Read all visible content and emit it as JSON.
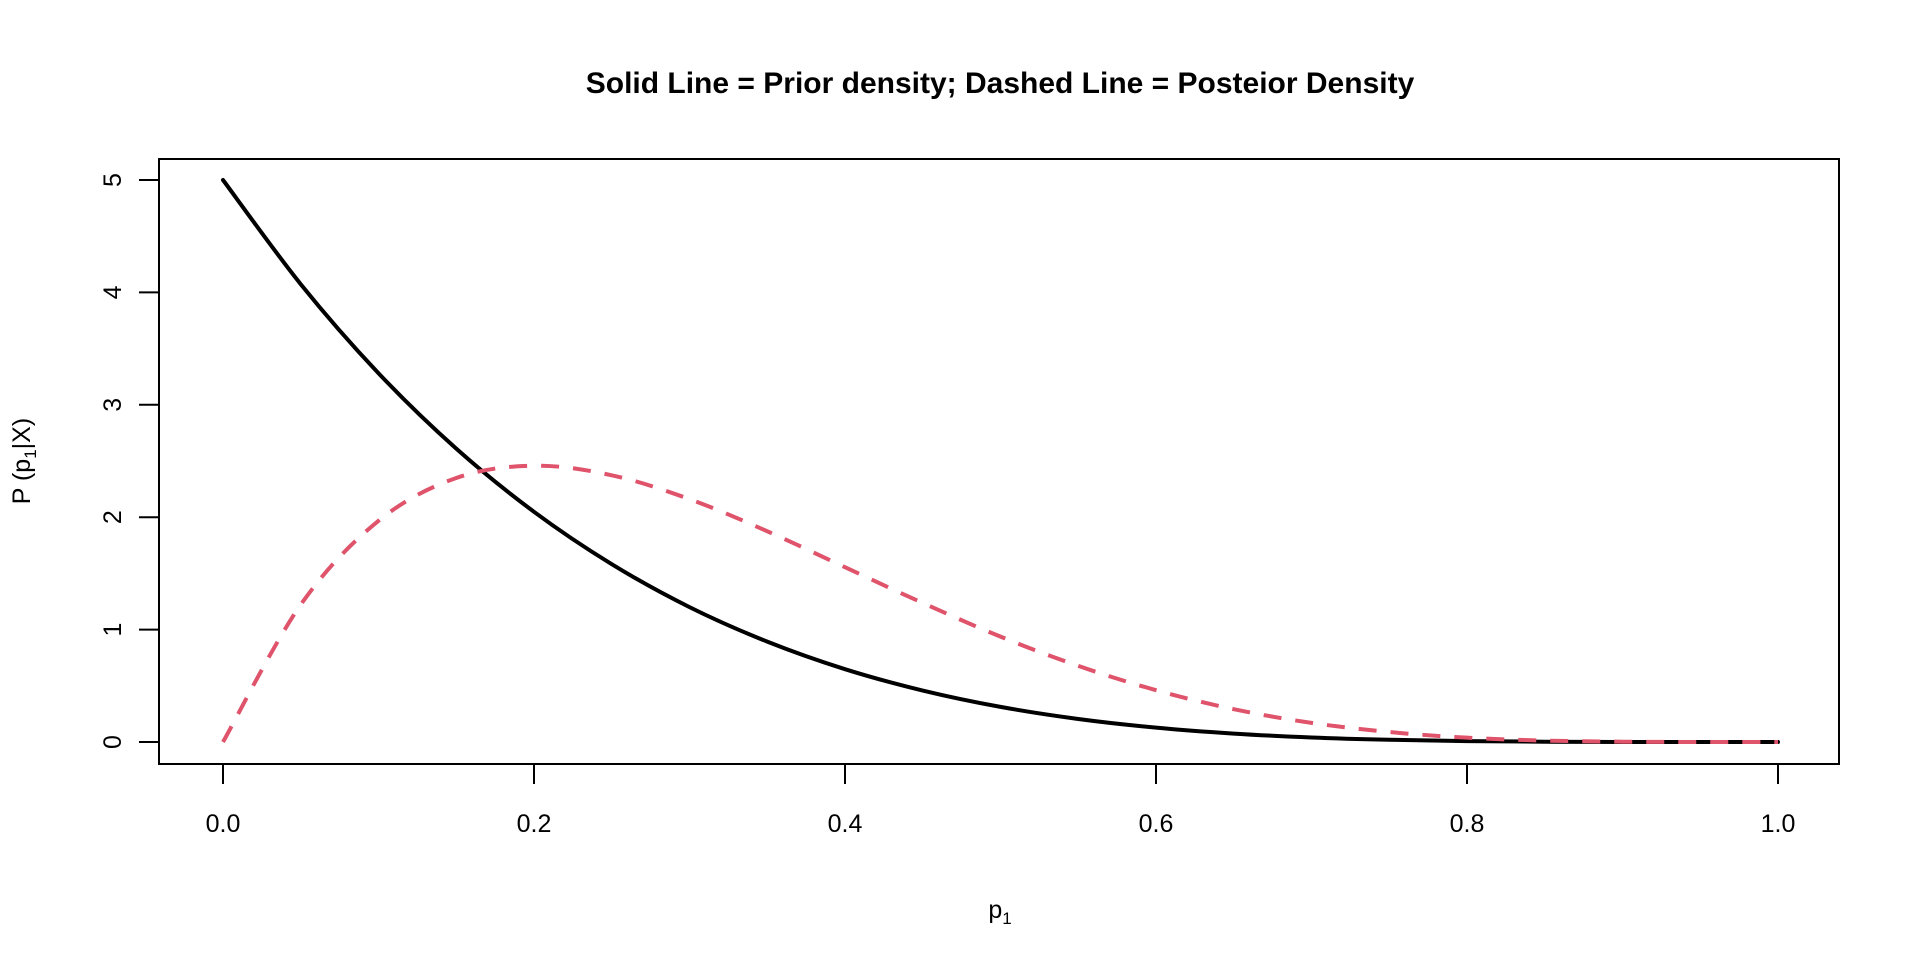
{
  "chart_data": {
    "type": "line",
    "title": "Solid Line = Prior density; Dashed Line = Posteior Density",
    "xlabel_main": "p",
    "xlabel_sub": "1",
    "ylabel_prefix": "P (p",
    "ylabel_sub": "1",
    "ylabel_suffix": "|X)",
    "xlim": [
      0,
      1
    ],
    "ylim": [
      0,
      5
    ],
    "grid": false,
    "legend": "none",
    "x_ticks": [
      "0.0",
      "0.2",
      "0.4",
      "0.6",
      "0.8",
      "1.0"
    ],
    "x_tick_values": [
      0,
      0.2,
      0.4,
      0.6,
      0.8,
      1.0
    ],
    "y_ticks": [
      "0",
      "1",
      "2",
      "3",
      "4",
      "5"
    ],
    "y_tick_values": [
      0,
      1,
      2,
      3,
      4,
      5
    ],
    "x": [
      0.0,
      0.05,
      0.1,
      0.15,
      0.2,
      0.25,
      0.3,
      0.35,
      0.4,
      0.45,
      0.5,
      0.55,
      0.6,
      0.65,
      0.7,
      0.75,
      0.8,
      0.85,
      0.9,
      0.95,
      1.0
    ],
    "series": [
      {
        "style": "solid",
        "color": "#000000",
        "values": [
          5.0,
          4.073,
          3.281,
          2.61,
          2.048,
          1.582,
          1.2,
          0.893,
          0.648,
          0.458,
          0.3125,
          0.205,
          0.128,
          0.075,
          0.0405,
          0.0198,
          0.008,
          0.0025,
          0.0005,
          3e-05,
          0.0
        ]
      },
      {
        "style": "dashed",
        "color": "#DF536B",
        "values": [
          0.0,
          1.222,
          1.968,
          2.349,
          2.458,
          2.373,
          2.161,
          1.875,
          1.555,
          1.237,
          0.9375,
          0.677,
          0.461,
          0.292,
          0.17,
          0.0889,
          0.0384,
          0.0128,
          0.0027,
          0.0002,
          0.0
        ]
      }
    ]
  }
}
